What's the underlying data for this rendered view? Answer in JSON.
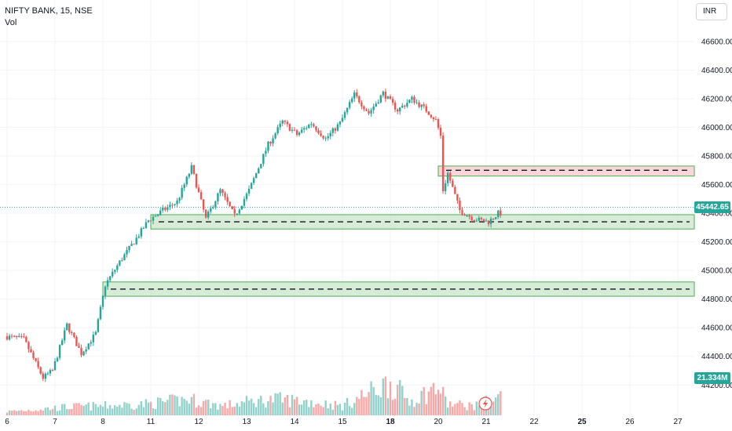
{
  "legend": {
    "symbol_line": "NIFTY BANK, 15, NSE",
    "volume_label": "Vol"
  },
  "currency": "INR",
  "last_price": {
    "label": "45442.65",
    "color": "#26a69a"
  },
  "volume_badge": {
    "label": "21.334M",
    "color": "#26a69a"
  },
  "colors": {
    "up": "#26a69a",
    "down": "#ef5350",
    "zone_green": "#c8e6c9",
    "zone_red": "#f8c8cc"
  },
  "chart_data": {
    "type": "candlestick",
    "title": "NIFTY BANK, 15, NSE",
    "ylim": [
      44060,
      46760
    ],
    "y_ticks": [
      46600,
      46400,
      46200,
      46000,
      45800,
      45600,
      45400,
      45200,
      45000,
      44800,
      44600,
      44400,
      44200
    ],
    "y_tick_labels": [
      "46600.00",
      "46400.00",
      "46200.00",
      "46000.00",
      "45800.00",
      "45600.00",
      "45400.00",
      "45200.00",
      "45000.00",
      "44800.00",
      "44600.00",
      "44400.00",
      "44200.00"
    ],
    "x_ticks": [
      {
        "label": "6",
        "bold": false
      },
      {
        "label": "7",
        "bold": false
      },
      {
        "label": "8",
        "bold": false
      },
      {
        "label": "11",
        "bold": false
      },
      {
        "label": "12",
        "bold": false
      },
      {
        "label": "13",
        "bold": false
      },
      {
        "label": "14",
        "bold": false
      },
      {
        "label": "15",
        "bold": false
      },
      {
        "label": "18",
        "bold": true
      },
      {
        "label": "20",
        "bold": false
      },
      {
        "label": "21",
        "bold": false
      },
      {
        "label": "22",
        "bold": false
      },
      {
        "label": "25",
        "bold": true
      },
      {
        "label": "26",
        "bold": false
      },
      {
        "label": "27",
        "bold": false
      }
    ],
    "last_price": 45442.65,
    "zones": [
      {
        "type": "supply",
        "color": "red",
        "from_day": "20",
        "top": 45730,
        "bottom": 45660,
        "mid": 45700
      },
      {
        "type": "demand",
        "color": "green",
        "from_day": "11",
        "top": 45390,
        "bottom": 45290,
        "mid": 45340
      },
      {
        "type": "demand",
        "color": "green",
        "from_day": "8",
        "top": 44920,
        "bottom": 44820,
        "mid": 44870
      }
    ],
    "price_path": [
      {
        "x": 6.0,
        "p": 44540
      },
      {
        "x": 6.4,
        "p": 44520
      },
      {
        "x": 6.8,
        "p": 44250
      },
      {
        "x": 7.0,
        "p": 44300
      },
      {
        "x": 7.3,
        "p": 44620
      },
      {
        "x": 7.6,
        "p": 44420
      },
      {
        "x": 7.9,
        "p": 44560
      },
      {
        "x": 8.1,
        "p": 44900
      },
      {
        "x": 8.4,
        "p": 45060
      },
      {
        "x": 8.7,
        "p": 45200
      },
      {
        "x": 9.0,
        "p": 45350
      },
      {
        "x": 9.3,
        "p": 45420
      },
      {
        "x": 9.6,
        "p": 45480
      },
      {
        "x": 9.9,
        "p": 45720
      },
      {
        "x": 10.2,
        "p": 45360
      },
      {
        "x": 10.5,
        "p": 45560
      },
      {
        "x": 10.8,
        "p": 45380
      },
      {
        "x": 11.1,
        "p": 45560
      },
      {
        "x": 11.5,
        "p": 45880
      },
      {
        "x": 11.8,
        "p": 46040
      },
      {
        "x": 12.1,
        "p": 45950
      },
      {
        "x": 12.4,
        "p": 46030
      },
      {
        "x": 12.7,
        "p": 45920
      },
      {
        "x": 13.0,
        "p": 46030
      },
      {
        "x": 13.3,
        "p": 46230
      },
      {
        "x": 13.6,
        "p": 46100
      },
      {
        "x": 13.9,
        "p": 46240
      },
      {
        "x": 14.2,
        "p": 46120
      },
      {
        "x": 14.5,
        "p": 46200
      },
      {
        "x": 14.8,
        "p": 46120
      },
      {
        "x": 15.0,
        "p": 46050
      },
      {
        "x": 15.1,
        "p": 45940
      },
      {
        "x": 15.15,
        "p": 45560
      },
      {
        "x": 15.25,
        "p": 45680
      },
      {
        "x": 15.5,
        "p": 45420
      },
      {
        "x": 15.8,
        "p": 45360
      },
      {
        "x": 16.1,
        "p": 45340
      },
      {
        "x": 16.3,
        "p": 45400
      }
    ],
    "volume_profile": [
      {
        "x": 6.0,
        "v": 4
      },
      {
        "x": 6.8,
        "v": 7
      },
      {
        "x": 7.3,
        "v": 9
      },
      {
        "x": 8.0,
        "v": 10
      },
      {
        "x": 8.9,
        "v": 12
      },
      {
        "x": 9.8,
        "v": 17
      },
      {
        "x": 10.5,
        "v": 10
      },
      {
        "x": 11.0,
        "v": 14
      },
      {
        "x": 11.6,
        "v": 17
      },
      {
        "x": 12.0,
        "v": 16
      },
      {
        "x": 12.7,
        "v": 12
      },
      {
        "x": 13.0,
        "v": 10
      },
      {
        "x": 14.0,
        "v": 35
      },
      {
        "x": 14.4,
        "v": 15
      },
      {
        "x": 15.0,
        "v": 30
      },
      {
        "x": 15.2,
        "v": 12
      },
      {
        "x": 15.8,
        "v": 10
      },
      {
        "x": 16.3,
        "v": 21
      }
    ]
  }
}
